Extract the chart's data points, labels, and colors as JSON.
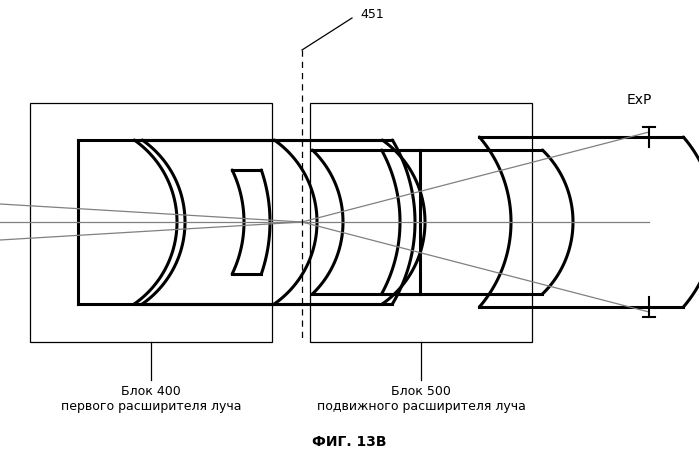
{
  "bg_color": "#ffffff",
  "line_color": "#000000",
  "ray_color": "#808080",
  "label_451": "451",
  "label_exP": "ExP",
  "label_block400_line1": "Блок 400",
  "label_block400_line2": "первого расширителя луча",
  "label_block500_line1": "Блок 500",
  "label_block500_line2": "подвижного расширителя луча",
  "fig_label": "ФИГ. 13В",
  "lw_thick": 2.2,
  "lw_thin": 0.9,
  "lw_ray": 0.9,
  "lw_dash": 0.9
}
